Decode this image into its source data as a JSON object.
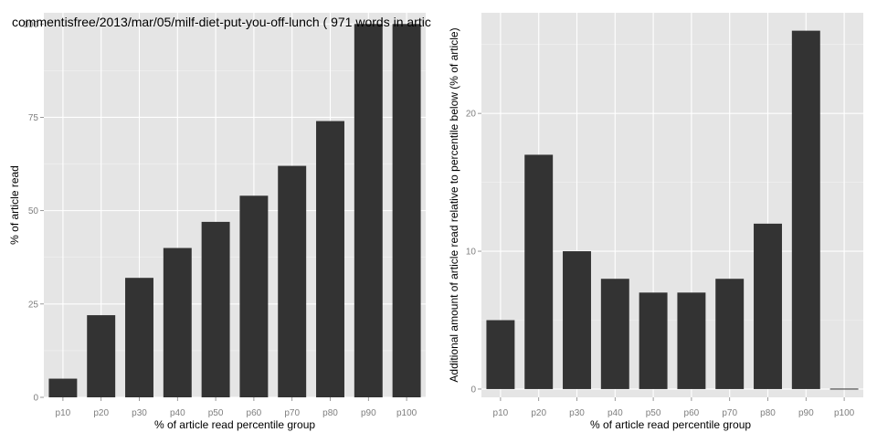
{
  "chart_data": [
    {
      "type": "bar",
      "title": "commentisfree/2013/mar/05/milf-diet-put-you-off-lunch ( 971 words in artic",
      "xlabel": "% of article read percentile group",
      "ylabel": "% of article read",
      "categories": [
        "p10",
        "p20",
        "p30",
        "p40",
        "p50",
        "p60",
        "p70",
        "p80",
        "p90",
        "p100"
      ],
      "values": [
        5,
        22,
        32,
        40,
        47,
        54,
        62,
        74,
        100,
        100
      ],
      "ylim": [
        0,
        103
      ],
      "yticks": [
        0,
        25,
        50,
        75,
        100
      ],
      "grid": true,
      "bar_color": "#333333",
      "panel_color": "#e5e5e5"
    },
    {
      "type": "bar",
      "title": "",
      "xlabel": "% of article read percentile group",
      "ylabel": "Additional amount of article read relative to percentile below (% of article)",
      "categories": [
        "p10",
        "p20",
        "p30",
        "p40",
        "p50",
        "p60",
        "p70",
        "p80",
        "p90",
        "p100"
      ],
      "values": [
        5,
        17,
        10,
        8,
        7,
        7,
        8,
        12,
        26,
        0
      ],
      "ylim": [
        -0.6,
        27.3
      ],
      "yticks": [
        0,
        10,
        20
      ],
      "grid": true,
      "bar_color": "#333333",
      "panel_color": "#e5e5e5"
    }
  ]
}
